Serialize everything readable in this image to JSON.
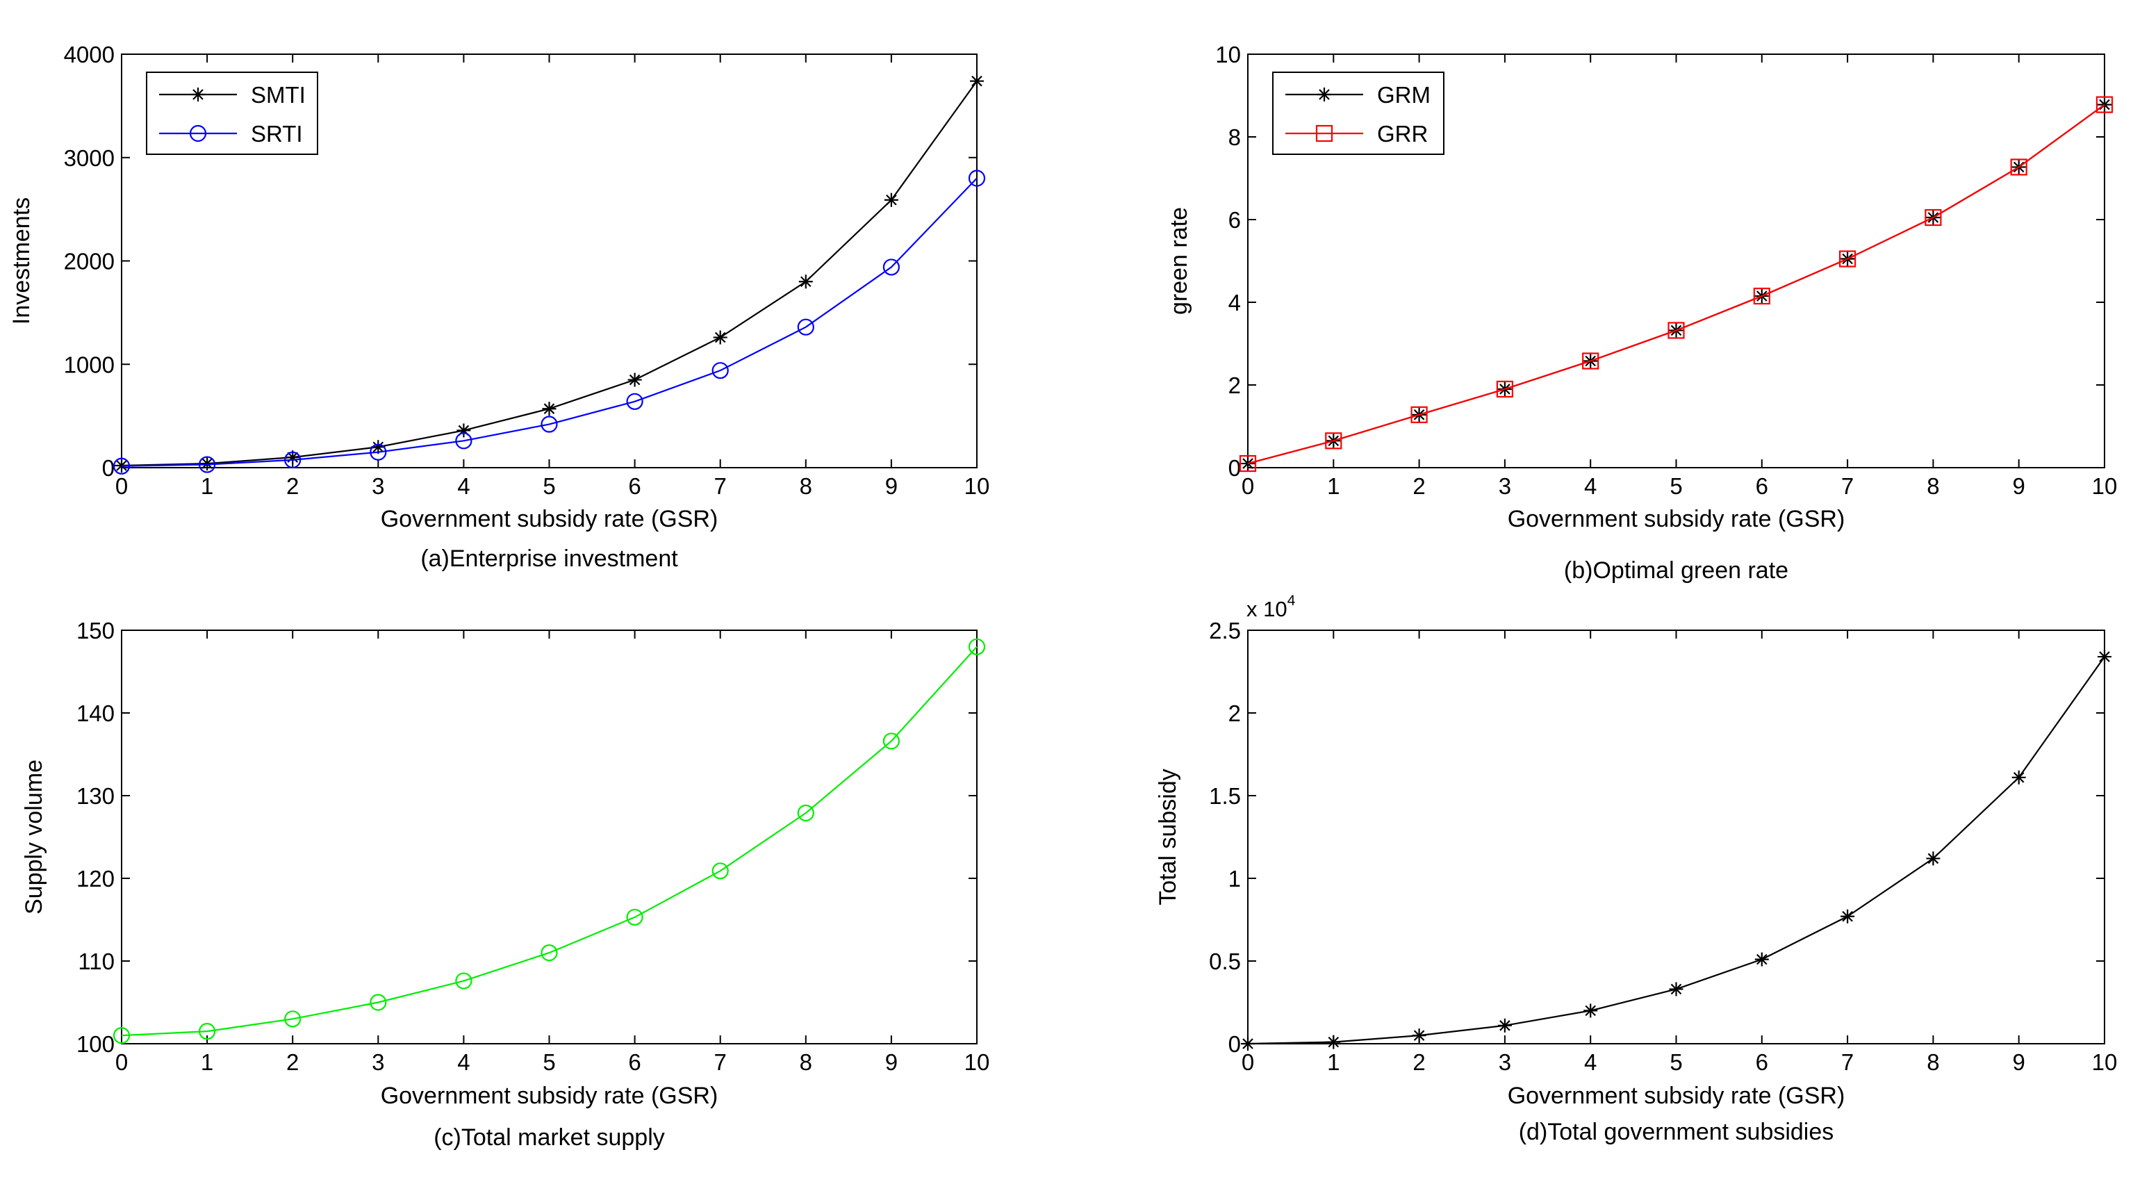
{
  "chart_data": [
    {
      "type": "line",
      "caption": "(a)Enterprise investment",
      "xlabel": "Government subsidy rate (GSR)",
      "ylabel": "Investments",
      "xlim": [
        0,
        10
      ],
      "ylim": [
        0,
        4000
      ],
      "xticks": [
        0,
        1,
        2,
        3,
        4,
        5,
        6,
        7,
        8,
        9,
        10
      ],
      "yticks": [
        0,
        1000,
        2000,
        3000,
        4000
      ],
      "legend_position": "top-left",
      "x": [
        0,
        1,
        2,
        3,
        4,
        5,
        6,
        7,
        8,
        9,
        10
      ],
      "series": [
        {
          "name": "SMTI",
          "color": "#000000",
          "marker": "star",
          "values": [
            20,
            40,
            100,
            200,
            360,
            570,
            850,
            1260,
            1800,
            2590,
            3740
          ]
        },
        {
          "name": "SRTI",
          "color": "#0000ff",
          "marker": "circle",
          "values": [
            15,
            30,
            75,
            150,
            260,
            420,
            640,
            940,
            1360,
            1940,
            2800
          ]
        }
      ]
    },
    {
      "type": "line",
      "caption": "(b)Optimal green rate",
      "xlabel": "Government subsidy rate (GSR)",
      "ylabel": "green rate",
      "xlim": [
        0,
        10
      ],
      "ylim": [
        0,
        10
      ],
      "xticks": [
        0,
        1,
        2,
        3,
        4,
        5,
        6,
        7,
        8,
        9,
        10
      ],
      "yticks": [
        0,
        2,
        4,
        6,
        8,
        10
      ],
      "legend_position": "top-left",
      "x": [
        0,
        1,
        2,
        3,
        4,
        5,
        6,
        7,
        8,
        9,
        10
      ],
      "series": [
        {
          "name": "GRM",
          "color": "#000000",
          "marker": "star",
          "values": [
            0.1,
            0.65,
            1.28,
            1.9,
            2.58,
            3.32,
            4.15,
            5.05,
            6.05,
            7.27,
            8.78
          ]
        },
        {
          "name": "GRR",
          "color": "#ff0000",
          "marker": "square",
          "values": [
            0.1,
            0.65,
            1.28,
            1.9,
            2.58,
            3.32,
            4.15,
            5.05,
            6.05,
            7.27,
            8.78
          ]
        }
      ]
    },
    {
      "type": "line",
      "caption": "(c)Total market supply",
      "xlabel": "Government subsidy rate (GSR)",
      "ylabel": "Supply volume",
      "xlim": [
        0,
        10
      ],
      "ylim": [
        100,
        150
      ],
      "xticks": [
        0,
        1,
        2,
        3,
        4,
        5,
        6,
        7,
        8,
        9,
        10
      ],
      "yticks": [
        100,
        110,
        120,
        130,
        140,
        150
      ],
      "x": [
        0,
        1,
        2,
        3,
        4,
        5,
        6,
        7,
        8,
        9,
        10
      ],
      "series": [
        {
          "name": "Total market supply",
          "color": "#00ee00",
          "marker": "circle",
          "values": [
            101.0,
            101.5,
            103.0,
            105.0,
            107.6,
            111.0,
            115.3,
            120.9,
            127.9,
            136.6,
            148.0
          ]
        }
      ]
    },
    {
      "type": "line",
      "caption": "(d)Total government subsidies",
      "xlabel": "Government subsidy rate (GSR)",
      "ylabel": "Total subsidy",
      "exponent_label": "x 10",
      "exponent_power": "4",
      "xlim": [
        0,
        10
      ],
      "ylim": [
        0,
        2.5
      ],
      "xticks": [
        0,
        1,
        2,
        3,
        4,
        5,
        6,
        7,
        8,
        9,
        10
      ],
      "yticks": [
        0,
        0.5,
        1,
        1.5,
        2,
        2.5
      ],
      "x": [
        0,
        1,
        2,
        3,
        4,
        5,
        6,
        7,
        8,
        9,
        10
      ],
      "series": [
        {
          "name": "Total subsidy",
          "color": "#000000",
          "marker": "star",
          "values": [
            0.0,
            0.01,
            0.05,
            0.11,
            0.2,
            0.33,
            0.51,
            0.77,
            1.12,
            1.61,
            2.34
          ]
        }
      ]
    }
  ]
}
